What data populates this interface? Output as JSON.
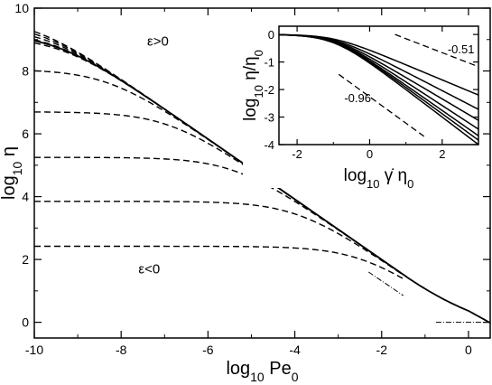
{
  "chart_data": [
    {
      "type": "line",
      "xlabel_main": "log",
      "xlabel_sub": "10",
      "xlabel_tail": " Pe",
      "xlabel_tail_sub": "0",
      "ylabel_main": "log",
      "ylabel_sub": "10",
      "ylabel_tail": " η",
      "xlim": [
        -10,
        0.5
      ],
      "ylim": [
        -0.5,
        10
      ],
      "xticks": [
        -10,
        -8,
        -6,
        -4,
        -2,
        0
      ],
      "yticks": [
        0,
        2,
        4,
        6,
        8,
        10
      ],
      "grid": false,
      "annotations": [
        {
          "text": "ε>0",
          "x": -7.4,
          "y": 8.8
        },
        {
          "text": "ε<0",
          "x": -7.6,
          "y": 1.55
        }
      ],
      "series": [
        {
          "style": "dashed",
          "plateau": 9.7,
          "power_slope": -0.96,
          "power_intercept": 0.077,
          "xmin": -10,
          "xmax": -1.5
        },
        {
          "style": "dashed",
          "plateau": 9.55,
          "power_slope": -0.96,
          "power_intercept": 0.077,
          "xmin": -10,
          "xmax": -1.5
        },
        {
          "style": "dashed",
          "plateau": 9.4,
          "power_slope": -0.96,
          "power_intercept": 0.077,
          "xmin": -10,
          "xmax": -1.5
        },
        {
          "style": "dashed",
          "plateau": 9.25,
          "power_slope": -0.96,
          "power_intercept": 0.077,
          "xmin": -10,
          "xmax": -1.5
        },
        {
          "style": "dashed",
          "plateau": 9.1,
          "power_slope": -0.96,
          "power_intercept": 0.077,
          "xmin": -10,
          "xmax": -1.5
        },
        {
          "style": "dashed",
          "plateau": 8.05,
          "power_slope": -0.96,
          "power_intercept": 0.077,
          "xmin": -10,
          "xmax": -1.5
        },
        {
          "style": "dashed",
          "plateau": 6.7,
          "power_slope": -0.96,
          "power_intercept": 0.077,
          "xmin": -10,
          "xmax": -1.5
        },
        {
          "style": "dashed",
          "plateau": 5.25,
          "power_slope": -0.96,
          "power_intercept": 0.077,
          "xmin": -10,
          "xmax": -1.5
        },
        {
          "style": "dashed",
          "plateau": 3.85,
          "power_slope": -0.96,
          "power_intercept": 0.077,
          "xmin": -10,
          "xmax": -1.5
        },
        {
          "style": "dashed",
          "plateau": 2.42,
          "power_slope": -0.96,
          "power_intercept": 0.077,
          "xmin": -10,
          "xmax": -1.5
        },
        {
          "style": "solid",
          "plateau": 9.2,
          "power_slope": -0.96,
          "power_intercept": 0.077,
          "xmin": -10,
          "xmax": 0.5
        }
      ],
      "dotted_guides": [
        {
          "style": "dash-dot",
          "points": [
            [
              -2.3,
              1.6
            ],
            [
              -1.5,
              0.85
            ]
          ]
        },
        {
          "style": "dash-dot",
          "points": [
            [
              -0.75,
              0.0
            ],
            [
              0.45,
              0.0
            ]
          ]
        }
      ]
    },
    {
      "type": "line",
      "inset": true,
      "xlabel_main": "log",
      "xlabel_sub": "10",
      "xlabel_tail": " γ̇ η",
      "xlabel_tail_sub": "0",
      "ylabel_main": "log",
      "ylabel_sub": "10",
      "ylabel_tail": " η/η",
      "ylabel_tail_sub": "0",
      "xlim": [
        -2.5,
        3
      ],
      "ylim": [
        -4,
        0.3
      ],
      "xticks": [
        -2,
        0,
        2
      ],
      "yticks": [
        0,
        -1,
        -2,
        -3,
        -4
      ],
      "annotations": [
        {
          "text": "-0.51",
          "x": 2.15,
          "y": -0.68
        },
        {
          "text": "-0.96",
          "x": -0.7,
          "y": -2.45
        }
      ],
      "guides": [
        {
          "slope": -0.51,
          "points": [
            [
              0.7,
              0.0
            ],
            [
              3.0,
              -1.17
            ]
          ]
        },
        {
          "slope": -0.96,
          "points": [
            [
              -0.85,
              -1.45
            ],
            [
              1.5,
              -3.7
            ]
          ]
        }
      ],
      "series": [
        {
          "style": "solid",
          "slope": -0.55,
          "xc": -1.0
        },
        {
          "style": "solid",
          "slope": -0.68,
          "xc": -1.0
        },
        {
          "style": "solid",
          "slope": -0.78,
          "xc": -1.0
        },
        {
          "style": "solid",
          "slope": -0.86,
          "xc": -1.0
        },
        {
          "style": "solid",
          "slope": -0.92,
          "xc": -1.0
        },
        {
          "style": "solid",
          "slope": -0.96,
          "xc": -1.0
        },
        {
          "style": "solid",
          "slope": -1.0,
          "xc": -1.0
        }
      ]
    }
  ]
}
